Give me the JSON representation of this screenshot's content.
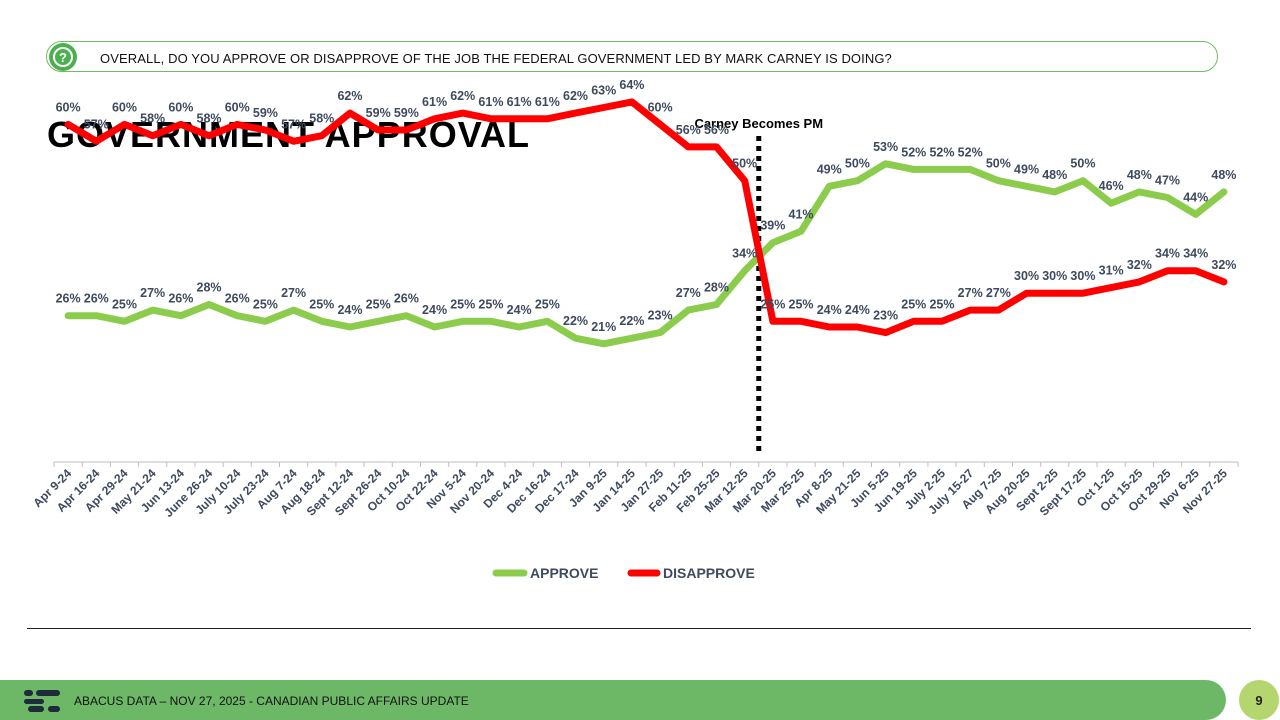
{
  "question": {
    "icon": "question-icon",
    "text": "OVERALL, DO YOU APPROVE OR DISAPPROVE OF THE JOB THE FEDERAL GOVERNMENT LED BY MARK CARNEY IS DOING?"
  },
  "title": "GOVERNMENT APPROVAL",
  "footer": {
    "logo": "abacus-logo-icon",
    "text": "ABACUS DATA – NOV 27, 2025 - CANADIAN PUBLIC AFFAIRS UPDATE",
    "page_number": "9"
  },
  "colors": {
    "approve": "#8ccc4c",
    "disapprove": "#ff0000",
    "accent_green": "#6db867",
    "label_text": "#3e4a5e"
  },
  "chart_data": {
    "type": "line",
    "title": "GOVERNMENT APPROVAL",
    "x": [
      "Apr 9-24",
      "Apr 16-24",
      "Apr 29-24",
      "May 21-24",
      "Jun 13-24",
      "June 26-24",
      "July 10-24",
      "July 23-24",
      "Aug 7-24",
      "Aug 18-24",
      "Sept 12-24",
      "Sept 26-24",
      "Oct 10-24",
      "Oct 22-24",
      "Nov 5-24",
      "Nov 20-24",
      "Dec 4-24",
      "Dec 16-24",
      "Dec 17-24",
      "Jan 9-25",
      "Jan 14-25",
      "Jan 27-25",
      "Feb 11-25",
      "Feb 25-25",
      "Mar 12-25",
      "Mar 20-25",
      "Mar 25-25",
      "Apr 8-25",
      "May 21-25",
      "Jun 5-25",
      "Jun 19-25",
      "July 2-25",
      "July 15-27",
      "Aug 7-25",
      "Aug 20-25",
      "Sept 2-25",
      "Sept 17-25",
      "Oct 1-25",
      "Oct 15-25",
      "Oct 29-25",
      "Nov 6-25",
      "Nov 27-25"
    ],
    "series": [
      {
        "name": "APPROVE",
        "values": [
          26,
          26,
          25,
          27,
          26,
          28,
          26,
          25,
          27,
          25,
          24,
          25,
          26,
          24,
          25,
          25,
          24,
          25,
          22,
          21,
          22,
          23,
          27,
          28,
          34,
          39,
          41,
          49,
          50,
          53,
          52,
          52,
          52,
          50,
          49,
          48,
          50,
          46,
          48,
          47,
          44,
          48
        ]
      },
      {
        "name": "DISAPPROVE",
        "values": [
          60,
          57,
          60,
          58,
          60,
          58,
          60,
          59,
          57,
          58,
          62,
          59,
          59,
          61,
          62,
          61,
          61,
          61,
          62,
          63,
          64,
          60,
          56,
          56,
          50,
          25,
          25,
          24,
          24,
          23,
          25,
          25,
          27,
          27,
          30,
          30,
          30,
          31,
          32,
          34,
          34,
          32
        ]
      }
    ],
    "data_labels": {
      "APPROVE": [
        "26%",
        "26%",
        "25%",
        "27%",
        "26%",
        "28%",
        "26%",
        "25%",
        "27%",
        "25%",
        "24%",
        "25%",
        "26%",
        "24%",
        "25%",
        "25%",
        "24%",
        "25%",
        "22%",
        "21%",
        "22%",
        "23%",
        "27%",
        "28%",
        "34%",
        "39%",
        "41%",
        "49%",
        "50%",
        "53%",
        "52%",
        "52%",
        "52%",
        "50%",
        "49%",
        "48%",
        "50%",
        "46%",
        "48%",
        "47%",
        "44%",
        "48%"
      ],
      "DISAPPROVE": [
        "60%",
        "57%",
        "60%",
        "58%",
        "60%",
        "58%",
        "60%",
        "59%",
        "57%",
        "58%",
        "62%",
        "59%",
        "59%",
        "61%",
        "62%",
        "61%",
        "61%",
        "61%",
        "62%",
        "63%",
        "64%",
        "60%",
        "56%",
        "56%",
        "50%",
        "25%",
        "25%",
        "24%",
        "24%",
        "23%",
        "25%",
        "25%",
        "27%",
        "27%",
        "30%",
        "30%",
        "30%",
        "31%",
        "32%",
        "34%",
        "34%",
        "32%"
      ]
    },
    "annotation": {
      "text": "Carney Becomes PM",
      "category": "Mar 20-25"
    },
    "ylim": [
      0,
      75
    ],
    "grid": false,
    "legend": "bottom"
  }
}
